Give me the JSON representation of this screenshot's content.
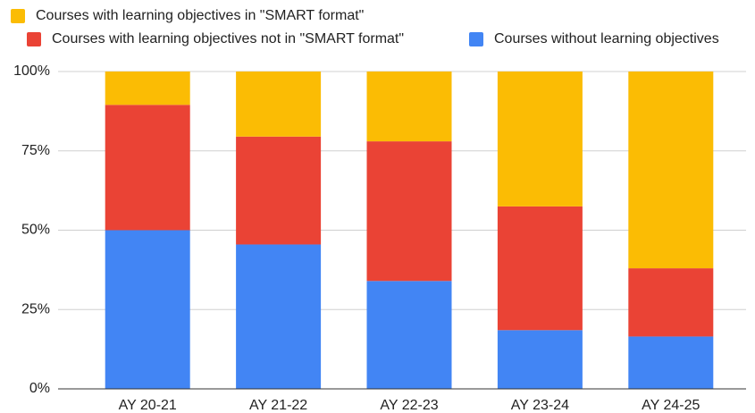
{
  "chart_data": {
    "type": "stacked_bar",
    "categories": [
      "AY 20-21",
      "AY 21-22",
      "AY 22-23",
      "AY 23-24",
      "AY 24-25"
    ],
    "series": [
      {
        "name": "Courses with learning objectives in \"SMART format\"",
        "color": "#fbbc04",
        "values": [
          10.5,
          20.5,
          22,
          42.5,
          62
        ]
      },
      {
        "name": "Courses with learning objectives not in \"SMART format\"",
        "color": "#ea4335",
        "values": [
          39.5,
          34,
          44,
          39,
          21.5
        ]
      },
      {
        "name": "Courses without learning objectives",
        "color": "#4285f4",
        "values": [
          50,
          45.5,
          34,
          18.5,
          16.5
        ]
      }
    ],
    "ylim": [
      0,
      100
    ],
    "yticks": [
      {
        "value": 0,
        "label": "0%"
      },
      {
        "value": 25,
        "label": "25%"
      },
      {
        "value": 50,
        "label": "50%"
      },
      {
        "value": 75,
        "label": "75%"
      },
      {
        "value": 100,
        "label": "100%"
      }
    ],
    "grid": true,
    "legend": "top"
  }
}
